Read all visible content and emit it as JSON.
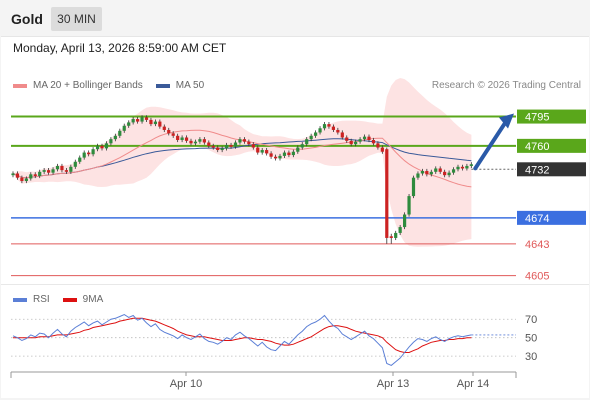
{
  "header": {
    "symbol": "Gold",
    "timeframe": "30 MIN"
  },
  "datetime": "Monday, April 13, 2026 8:59:00 AM CET",
  "legend": {
    "bb_label": "MA 20 + Bollinger Bands",
    "ma50_label": "MA 50",
    "rsi_label": "RSI",
    "rsi_ma_label": "9MA"
  },
  "credit": "Research © 2026 Trading Central",
  "colors": {
    "bb": "#f08b8b",
    "band_fill": "#fde3e3",
    "ma50": "#3a5a99",
    "up_candle": "#2e8b3d",
    "down_candle": "#cc2222",
    "resistance": "#5aa71b",
    "pivot": "#3b6fe0",
    "support": "#e05a5a",
    "current": "#333333",
    "arrow": "#2a5aa8",
    "rsi": "#5b7fd6",
    "rsi_ma": "#dd1111"
  },
  "chart_data": [
    {
      "type": "candlestick",
      "title": "Gold 30 MIN",
      "x_ticks": [
        "Apr 10",
        "Apr 13",
        "Apr 14"
      ],
      "ylim": [
        4595,
        4810
      ],
      "levels": [
        {
          "value": 4795,
          "label": "4795",
          "kind": "resistance"
        },
        {
          "value": 4760,
          "label": "4760",
          "kind": "resistance"
        },
        {
          "value": 4732,
          "label": "4732",
          "kind": "current"
        },
        {
          "value": 4674,
          "label": "4674",
          "kind": "pivot"
        },
        {
          "value": 4643,
          "label": "4643",
          "kind": "support"
        },
        {
          "value": 4605,
          "label": "4605",
          "kind": "support"
        }
      ],
      "forecast_arrow": {
        "from": 4732,
        "to": 4795,
        "direction": "up"
      },
      "close": [
        4727,
        4722,
        4718,
        4721,
        4726,
        4724,
        4729,
        4731,
        4728,
        4732,
        4736,
        4731,
        4729,
        4735,
        4741,
        4746,
        4752,
        4750,
        4756,
        4760,
        4757,
        4763,
        4768,
        4772,
        4778,
        4784,
        4788,
        4792,
        4789,
        4794,
        4791,
        4786,
        4789,
        4783,
        4779,
        4775,
        4772,
        4767,
        4770,
        4766,
        4763,
        4765,
        4768,
        4764,
        4760,
        4758,
        4755,
        4757,
        4761,
        4759,
        4764,
        4768,
        4765,
        4762,
        4758,
        4752,
        4755,
        4751,
        4747,
        4745,
        4748,
        4752,
        4749,
        4753,
        4758,
        4762,
        4768,
        4772,
        4776,
        4781,
        4786,
        4783,
        4779,
        4776,
        4770,
        4766,
        4762,
        4765,
        4768,
        4771,
        4767,
        4763,
        4758,
        4753,
        4650,
        4650,
        4656,
        4663,
        4678,
        4700,
        4722,
        4727,
        4730,
        4726,
        4729,
        4733,
        4729,
        4725,
        4728,
        4732,
        4735,
        4733,
        4736,
        4738
      ],
      "gaps": [
        84
      ]
    },
    {
      "type": "line",
      "title": "RSI",
      "ylim": [
        15,
        80
      ],
      "y_ticks": [
        70,
        50,
        30
      ],
      "series": [
        {
          "name": "RSI",
          "values": [
            52,
            50,
            47,
            49,
            53,
            51,
            55,
            54,
            50,
            55,
            59,
            54,
            51,
            57,
            61,
            64,
            67,
            63,
            66,
            68,
            64,
            67,
            70,
            71,
            73,
            75,
            72,
            74,
            69,
            71,
            66,
            62,
            65,
            59,
            56,
            54,
            52,
            49,
            53,
            50,
            48,
            51,
            54,
            49,
            46,
            45,
            43,
            46,
            50,
            48,
            53,
            56,
            52,
            49,
            45,
            41,
            45,
            40,
            37,
            36,
            41,
            46,
            43,
            48,
            53,
            57,
            62,
            65,
            67,
            70,
            74,
            68,
            63,
            60,
            54,
            51,
            48,
            51,
            54,
            57,
            52,
            49,
            44,
            39,
            22,
            20,
            24,
            28,
            34,
            40,
            45,
            49,
            48,
            46,
            49,
            51,
            48,
            46,
            49,
            51,
            52,
            51,
            52,
            53
          ]
        },
        {
          "name": "9MA",
          "values": [
            50,
            50,
            50,
            50,
            50,
            50,
            51,
            51,
            51,
            52,
            53,
            53,
            53,
            54,
            55,
            56,
            58,
            59,
            61,
            62,
            63,
            64,
            65,
            66,
            68,
            69,
            70,
            71,
            71,
            71,
            70,
            69,
            68,
            66,
            64,
            62,
            60,
            57,
            55,
            53,
            52,
            51,
            51,
            51,
            50,
            49,
            48,
            47,
            47,
            47,
            48,
            49,
            50,
            50,
            49,
            48,
            48,
            47,
            46,
            44,
            43,
            42,
            42,
            43,
            45,
            47,
            49,
            51,
            54,
            57,
            60,
            62,
            63,
            63,
            62,
            61,
            59,
            57,
            56,
            55,
            54,
            53,
            52,
            50,
            45,
            41,
            37,
            35,
            34,
            34,
            36,
            38,
            41,
            43,
            45,
            46,
            47,
            47,
            48,
            48,
            49,
            49,
            50,
            50
          ]
        }
      ]
    }
  ]
}
